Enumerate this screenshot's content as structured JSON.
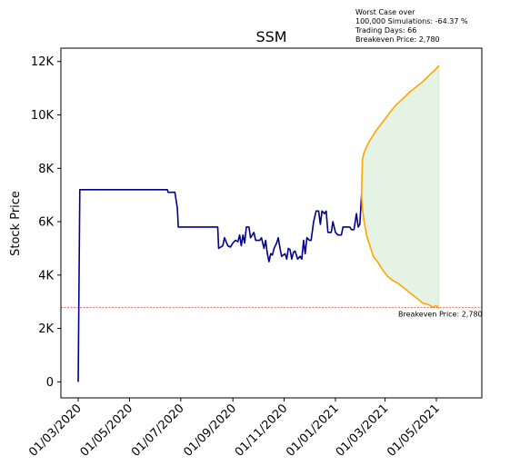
{
  "chart_data": {
    "type": "line",
    "title": "SSM",
    "xlabel": "",
    "ylabel": "Stock Price",
    "ylim": [
      -600,
      12500
    ],
    "x_tick_labels": [
      "01/03/2020",
      "01/05/2020",
      "01/07/2020",
      "01/09/2020",
      "01/11/2020",
      "01/01/2021",
      "01/03/2021",
      "01/05/2021"
    ],
    "y_ticks": [
      0,
      2000,
      4000,
      6000,
      8000,
      10000,
      12000
    ],
    "y_tick_labels": [
      "0",
      "2K",
      "4K",
      "6K",
      "8K",
      "10K",
      "12K"
    ],
    "grid": false,
    "annotation_lines": [
      "Worst Case over",
      "100,000 Simulations: -64.37 %",
      "Trading Days: 66",
      "Breakeven Price: 2,780"
    ],
    "breakeven": {
      "value": 2780,
      "label": "Breakeven Price: 2,780",
      "color": "#d62728"
    },
    "series": [
      {
        "role": "historical",
        "color": "#00008b",
        "points": [
          [
            "2020-03-01",
            0
          ],
          [
            "2020-03-03",
            7200
          ],
          [
            "2020-04-15",
            7200
          ],
          [
            "2020-05-20",
            7200
          ],
          [
            "2020-06-15",
            7200
          ],
          [
            "2020-06-16",
            7100
          ],
          [
            "2020-06-24",
            7100
          ],
          [
            "2020-06-27",
            6500
          ],
          [
            "2020-06-28",
            5800
          ],
          [
            "2020-07-20",
            5800
          ],
          [
            "2020-08-14",
            5800
          ],
          [
            "2020-08-15",
            5000
          ],
          [
            "2020-08-20",
            5100
          ],
          [
            "2020-08-22",
            5400
          ],
          [
            "2020-08-26",
            5100
          ],
          [
            "2020-08-29",
            5050
          ],
          [
            "2020-09-01",
            5200
          ],
          [
            "2020-09-04",
            5300
          ],
          [
            "2020-09-07",
            5250
          ],
          [
            "2020-09-09",
            5500
          ],
          [
            "2020-09-11",
            5100
          ],
          [
            "2020-09-13",
            5500
          ],
          [
            "2020-09-15",
            5200
          ],
          [
            "2020-09-17",
            5800
          ],
          [
            "2020-09-20",
            5800
          ],
          [
            "2020-09-22",
            5400
          ],
          [
            "2020-09-24",
            5500
          ],
          [
            "2020-09-26",
            5600
          ],
          [
            "2020-09-28",
            5300
          ],
          [
            "2020-10-03",
            5300
          ],
          [
            "2020-10-05",
            5400
          ],
          [
            "2020-10-08",
            5000
          ],
          [
            "2020-10-10",
            5300
          ],
          [
            "2020-10-12",
            4800
          ],
          [
            "2020-10-14",
            4500
          ],
          [
            "2020-10-16",
            4800
          ],
          [
            "2020-10-18",
            4750
          ],
          [
            "2020-10-20",
            5000
          ],
          [
            "2020-10-23",
            5200
          ],
          [
            "2020-10-25",
            5400
          ],
          [
            "2020-10-27",
            5000
          ],
          [
            "2020-10-29",
            4700
          ],
          [
            "2020-11-02",
            4800
          ],
          [
            "2020-11-04",
            4600
          ],
          [
            "2020-11-06",
            5000
          ],
          [
            "2020-11-08",
            4950
          ],
          [
            "2020-11-10",
            4600
          ],
          [
            "2020-11-12",
            4850
          ],
          [
            "2020-11-14",
            4900
          ],
          [
            "2020-11-17",
            4600
          ],
          [
            "2020-11-20",
            4700
          ],
          [
            "2020-11-22",
            4600
          ],
          [
            "2020-11-24",
            5300
          ],
          [
            "2020-11-26",
            4800
          ],
          [
            "2020-11-28",
            5400
          ],
          [
            "2020-12-01",
            5300
          ],
          [
            "2020-12-03",
            5300
          ],
          [
            "2020-12-06",
            6000
          ],
          [
            "2020-12-09",
            6400
          ],
          [
            "2020-12-12",
            6400
          ],
          [
            "2020-12-14",
            5900
          ],
          [
            "2020-12-16",
            6400
          ],
          [
            "2020-12-19",
            6300
          ],
          [
            "2020-12-21",
            6400
          ],
          [
            "2020-12-23",
            5600
          ],
          [
            "2020-12-27",
            5600
          ],
          [
            "2020-12-29",
            6000
          ],
          [
            "2021-01-01",
            5600
          ],
          [
            "2021-01-04",
            5500
          ],
          [
            "2021-01-08",
            5500
          ],
          [
            "2021-01-10",
            5800
          ],
          [
            "2021-01-18",
            5800
          ],
          [
            "2021-01-20",
            5700
          ],
          [
            "2021-01-23",
            5700
          ],
          [
            "2021-01-26",
            6300
          ],
          [
            "2021-01-28",
            5800
          ],
          [
            "2021-01-30",
            5900
          ],
          [
            "2021-02-01",
            7000
          ]
        ]
      },
      {
        "role": "simulation_upper",
        "color": "#ffa500",
        "points": [
          [
            "2021-02-01",
            7000
          ],
          [
            "2021-02-02",
            8300
          ],
          [
            "2021-02-04",
            8600
          ],
          [
            "2021-02-07",
            8800
          ],
          [
            "2021-02-10",
            9000
          ],
          [
            "2021-02-13",
            9150
          ],
          [
            "2021-02-18",
            9400
          ],
          [
            "2021-02-23",
            9600
          ],
          [
            "2021-03-01",
            9850
          ],
          [
            "2021-03-08",
            10150
          ],
          [
            "2021-03-15",
            10400
          ],
          [
            "2021-03-22",
            10600
          ],
          [
            "2021-03-30",
            10850
          ],
          [
            "2021-04-07",
            11050
          ],
          [
            "2021-04-15",
            11250
          ],
          [
            "2021-04-23",
            11500
          ],
          [
            "2021-04-30",
            11700
          ],
          [
            "2021-05-04",
            11850
          ]
        ]
      },
      {
        "role": "simulation_lower",
        "color": "#ffa500",
        "points": [
          [
            "2021-02-01",
            7000
          ],
          [
            "2021-02-02",
            6500
          ],
          [
            "2021-02-04",
            6000
          ],
          [
            "2021-02-07",
            5500
          ],
          [
            "2021-02-11",
            5100
          ],
          [
            "2021-02-15",
            4700
          ],
          [
            "2021-02-20",
            4500
          ],
          [
            "2021-02-26",
            4200
          ],
          [
            "2021-03-04",
            3950
          ],
          [
            "2021-03-10",
            3800
          ],
          [
            "2021-03-16",
            3700
          ],
          [
            "2021-03-22",
            3550
          ],
          [
            "2021-03-28",
            3400
          ],
          [
            "2021-04-03",
            3250
          ],
          [
            "2021-04-09",
            3100
          ],
          [
            "2021-04-15",
            2950
          ],
          [
            "2021-04-21",
            2900
          ],
          [
            "2021-04-27",
            2800
          ],
          [
            "2021-05-01",
            2850
          ],
          [
            "2021-05-04",
            2750
          ]
        ]
      }
    ],
    "simulation_fill_color": "#2ca02c"
  }
}
